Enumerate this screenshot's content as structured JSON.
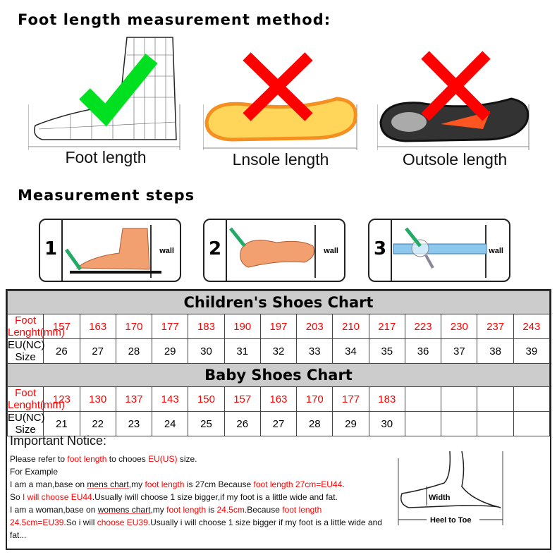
{
  "titles": {
    "method": "Foot length measurement method:",
    "steps": "Measurement steps"
  },
  "methods": [
    {
      "label": "Foot length",
      "mark": "check-icon",
      "mark_color": "#00e020"
    },
    {
      "label": "Lnsole length",
      "mark": "cross-icon",
      "mark_color": "#ff0000"
    },
    {
      "label": "Outsole length",
      "mark": "cross-icon",
      "mark_color": "#ff0000"
    }
  ],
  "steps": [
    {
      "num": "1",
      "wall": "wall"
    },
    {
      "num": "2",
      "wall": "wall"
    },
    {
      "num": "3",
      "wall": "wall"
    }
  ],
  "children": {
    "title": "Children's Shoes Chart",
    "row1_label": "Foot Lenght(mm)",
    "lengths": [
      "157",
      "163",
      "170",
      "177",
      "183",
      "190",
      "197",
      "203",
      "210",
      "217",
      "223",
      "230",
      "237",
      "243"
    ],
    "row2_label": "EU(NC) Size",
    "sizes": [
      "26",
      "27",
      "28",
      "29",
      "30",
      "31",
      "32",
      "33",
      "34",
      "35",
      "36",
      "37",
      "38",
      "39"
    ]
  },
  "baby": {
    "title": "Baby Shoes Chart",
    "row1_label": "Foot Lenght(mm)",
    "lengths": [
      "123",
      "130",
      "137",
      "143",
      "150",
      "157",
      "163",
      "170",
      "177",
      "183",
      "",
      "",
      "",
      ""
    ],
    "row2_label": "EU(NC) Size",
    "sizes": [
      "21",
      "22",
      "23",
      "24",
      "25",
      "26",
      "27",
      "28",
      "29",
      "30",
      "",
      "",
      "",
      ""
    ]
  },
  "notice": {
    "title": "Important Notice:",
    "l1": [
      "Please refer to ",
      "foot length",
      " to chooes ",
      "EU(US)",
      " size."
    ],
    "l2": "For Example",
    "l3": [
      "I am a man,base on ",
      "mens chart",
      ",my ",
      "foot length",
      " is 27cm Because ",
      "foot length 27cm=EU44",
      "."
    ],
    "l4": [
      "So ",
      "I will choose EU44",
      ".Usually iwill choose 1 size bigger,if my foot is a little wide and fat."
    ],
    "l5": [
      "I am a woman,base on ",
      "womens chart",
      ",my ",
      "foot length",
      " is ",
      "24.5cm",
      ".Because ",
      "foot length 24.5cm=EU39",
      ".So i will ",
      "choose EU39",
      ".Usually i will choose 1 size bigger if my foot is a little wide and fat..."
    ]
  },
  "diagram": {
    "width_label": "Width",
    "heel_label": "Heel to Toe"
  }
}
